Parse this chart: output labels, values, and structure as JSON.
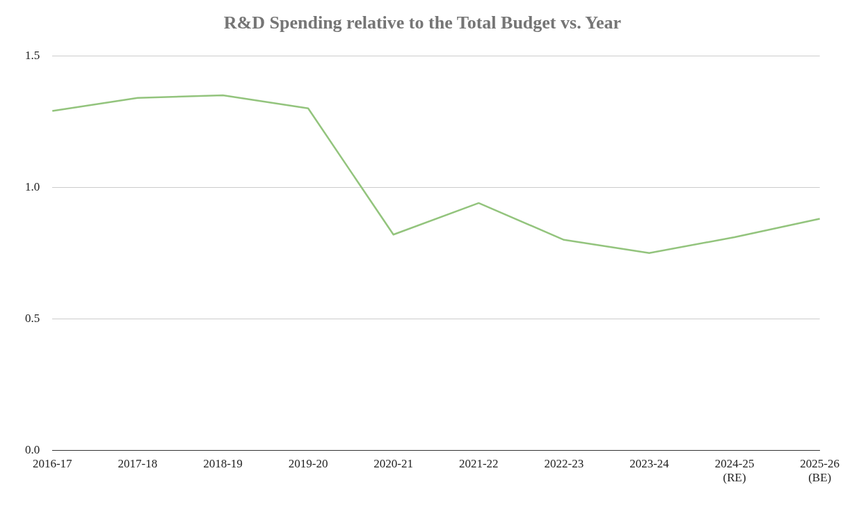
{
  "chart_data": {
    "type": "line",
    "title": "R&D Spending relative to the Total Budget vs. Year",
    "categories": [
      "2016-17",
      "2017-18",
      "2018-19",
      "2019-20",
      "2020-21",
      "2021-22",
      "2022-23",
      "2023-24",
      "2024-25 (RE)",
      "2025-26 (BE)"
    ],
    "series": [
      {
        "color": "#93c47d",
        "values": [
          1.29,
          1.34,
          1.35,
          1.3,
          0.82,
          0.94,
          0.8,
          0.75,
          0.81,
          0.88
        ]
      }
    ],
    "ylim": [
      0,
      1.5
    ],
    "yticks": [
      {
        "value": 0,
        "label": "0.0"
      },
      {
        "value": 0.5,
        "label": "0.5"
      },
      {
        "value": 1,
        "label": "1.0"
      },
      {
        "value": 1.5,
        "label": "1.5"
      }
    ],
    "grid": "y",
    "legend": false,
    "marker": "none",
    "line_style": "solid"
  }
}
